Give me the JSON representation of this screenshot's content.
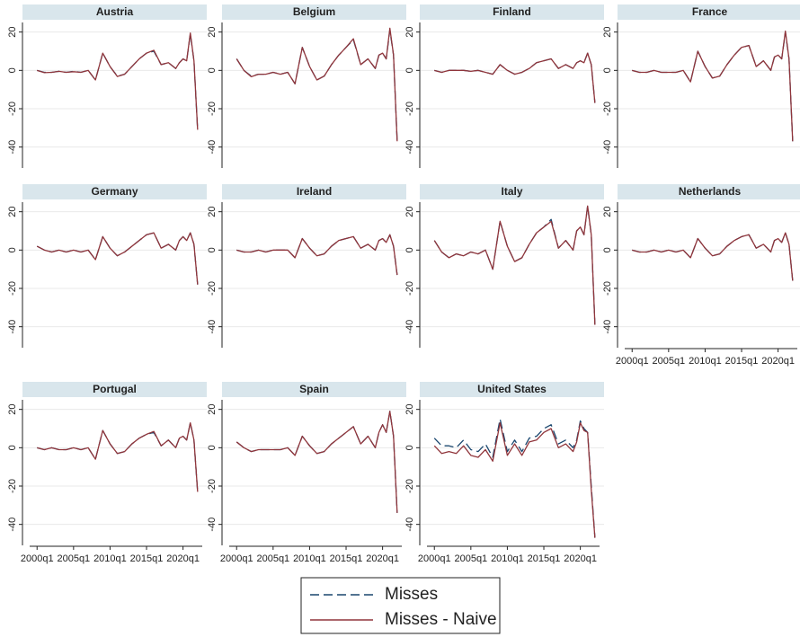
{
  "chart_data": {
    "type": "line",
    "x": [
      "2000q1",
      "2001q1",
      "2002q1",
      "2003q1",
      "2004q1",
      "2005q1",
      "2006q1",
      "2007q1",
      "2008q1",
      "2009q1",
      "2010q1",
      "2011q1",
      "2012q1",
      "2013q1",
      "2014q1",
      "2015q1",
      "2016q1",
      "2017q1",
      "2018q1",
      "2019q1",
      "2019q3",
      "2020q1",
      "2020q3",
      "2021q1",
      "2021q3",
      "2022q1"
    ],
    "xlim": [
      "1998q1",
      "2023q2"
    ],
    "xticks": [
      "2000q1",
      "2005q1",
      "2010q1",
      "2015q1",
      "2020q1"
    ],
    "ylim": [
      -50,
      25
    ],
    "yticks": [
      20,
      0,
      -20,
      -40
    ],
    "grid": true,
    "series": [
      {
        "name": "Misses",
        "color": "#1a476f",
        "dash": "10 5"
      },
      {
        "name": "Misses - Naive",
        "color": "#90353b"
      }
    ],
    "panels": [
      {
        "title": "Austria",
        "series": [
          {
            "values": [
              0,
              -1,
              -1,
              -0.5,
              -1,
              -0.5,
              -1,
              0,
              -5,
              9,
              2,
              -3,
              -2,
              2,
              6,
              9,
              10,
              3,
              4,
              1,
              4,
              6,
              5,
              19,
              5,
              -31
            ]
          },
          {
            "values": [
              0,
              -1.2,
              -1,
              -0.5,
              -1,
              -0.7,
              -1,
              0,
              -5,
              9,
              2,
              -3.2,
              -2,
              2,
              6,
              9,
              10.5,
              3,
              4,
              1,
              4,
              6,
              5,
              19.5,
              5,
              -31
            ]
          }
        ]
      },
      {
        "title": "Belgium",
        "series": [
          {
            "values": [
              6,
              0,
              -3,
              -2,
              -2,
              -1,
              -2,
              -1,
              -7,
              12,
              2,
              -5,
              -3,
              3,
              8,
              12,
              16,
              3,
              6,
              1,
              8,
              9,
              6,
              21,
              8,
              -37
            ]
          },
          {
            "values": [
              6,
              0,
              -3.3,
              -2,
              -2,
              -1,
              -2,
              -1,
              -7,
              12,
              2,
              -5,
              -3,
              3,
              8,
              12,
              16.5,
              3,
              6,
              1,
              8,
              9,
              6,
              22,
              8,
              -37
            ]
          }
        ]
      },
      {
        "title": "Finland",
        "series": [
          {
            "values": [
              0,
              -1,
              0,
              0,
              0,
              -0.5,
              0,
              -1,
              -2,
              3,
              0,
              -2,
              -1,
              1,
              4,
              5,
              6,
              1,
              3,
              1,
              4,
              5,
              4,
              9,
              3,
              -17
            ]
          },
          {
            "values": [
              0,
              -1,
              0,
              0,
              0,
              -0.5,
              0,
              -1,
              -2,
              3,
              0,
              -2,
              -1,
              1,
              4,
              5,
              6,
              1,
              3,
              1,
              4,
              5,
              4,
              9,
              3,
              -17
            ]
          }
        ]
      },
      {
        "title": "France",
        "series": [
          {
            "values": [
              0,
              -1,
              -1,
              0,
              -1,
              -1,
              -1,
              0,
              -6,
              10,
              2,
              -4,
              -3,
              3,
              8,
              12,
              13,
              2,
              5,
              0,
              7,
              8,
              6,
              20,
              6,
              -37
            ]
          },
          {
            "values": [
              0,
              -1,
              -1,
              0,
              -1,
              -1,
              -1,
              0,
              -6,
              10,
              2,
              -4,
              -3,
              3,
              8,
              12,
              13,
              2,
              5,
              0,
              7,
              8,
              6,
              20.5,
              6,
              -37
            ]
          }
        ]
      },
      {
        "title": "Germany",
        "series": [
          {
            "values": [
              2,
              0,
              -1,
              0,
              -1,
              0,
              -1,
              0,
              -5,
              7,
              1,
              -3,
              -1,
              2,
              5,
              8,
              9,
              1,
              3,
              0,
              5,
              7,
              5,
              9,
              3,
              -18
            ]
          },
          {
            "values": [
              2,
              0,
              -1,
              0,
              -1,
              0,
              -1,
              0,
              -5,
              7,
              1,
              -3,
              -1,
              2,
              5,
              8,
              9,
              1,
              3,
              0,
              5,
              7,
              5,
              9,
              3,
              -18
            ]
          }
        ]
      },
      {
        "title": "Ireland",
        "series": [
          {
            "values": [
              0,
              -1,
              -1,
              0,
              -1,
              0,
              0,
              0,
              -4,
              6,
              1,
              -3,
              -2,
              2,
              5,
              6,
              7,
              1,
              3,
              0,
              5,
              6,
              4,
              8,
              2,
              -13
            ]
          },
          {
            "values": [
              0,
              -1,
              -1,
              0,
              -1,
              0,
              0,
              0,
              -4,
              6,
              1,
              -3,
              -2,
              2,
              5,
              6,
              7,
              1,
              3,
              0,
              5,
              6,
              4,
              8,
              2,
              -13
            ]
          }
        ]
      },
      {
        "title": "Italy",
        "series": [
          {
            "values": [
              5,
              -1,
              -4,
              -2,
              -3,
              -1,
              -2,
              0,
              -10,
              15,
              2,
              -6,
              -4,
              3,
              9,
              12,
              16,
              1,
              5,
              0,
              10,
              12,
              8,
              23,
              8,
              -39
            ]
          },
          {
            "values": [
              5,
              -1,
              -4,
              -2,
              -3,
              -1,
              -2,
              0,
              -10,
              15,
              2,
              -6,
              -4,
              3,
              9,
              12,
              15,
              1,
              5,
              0,
              10,
              12,
              8,
              23,
              8,
              -39
            ]
          }
        ]
      },
      {
        "title": "Netherlands",
        "series": [
          {
            "values": [
              0,
              -1,
              -1,
              0,
              -1,
              0,
              -1,
              0,
              -4,
              6,
              1,
              -3,
              -2,
              2,
              5,
              7,
              8,
              1,
              3,
              -1,
              5,
              6,
              4,
              9,
              3,
              -16
            ]
          },
          {
            "values": [
              0,
              -1,
              -1,
              0,
              -1,
              0,
              -1,
              0,
              -4,
              6,
              1,
              -3,
              -2,
              2,
              5,
              7,
              8,
              1,
              3,
              -1,
              5,
              6,
              4,
              9,
              3,
              -16
            ]
          }
        ]
      },
      {
        "title": "Portugal",
        "series": [
          {
            "values": [
              0,
              -1,
              0,
              -1,
              -1,
              0,
              -1,
              0,
              -6,
              9,
              2,
              -3,
              -2,
              2,
              5,
              7,
              8,
              1,
              4,
              0,
              5,
              6,
              4,
              13,
              4,
              -23
            ]
          },
          {
            "values": [
              0,
              -1,
              0,
              -1,
              -1,
              0,
              -1,
              0,
              -6,
              9,
              2,
              -3,
              -2,
              2,
              5,
              7,
              8.5,
              1,
              4,
              0,
              5,
              6,
              4,
              13,
              4,
              -23
            ]
          }
        ]
      },
      {
        "title": "Spain",
        "series": [
          {
            "values": [
              3,
              0,
              -2,
              -1,
              -1,
              -1,
              -1,
              0,
              -4,
              6,
              1,
              -3,
              -2,
              2,
              5,
              8,
              11,
              2,
              6,
              0,
              8,
              12,
              8,
              19,
              6,
              -34
            ]
          },
          {
            "values": [
              3,
              0,
              -2,
              -1,
              -1,
              -1,
              -1,
              0,
              -4,
              6,
              1,
              -3,
              -2,
              2,
              5,
              8,
              11,
              2,
              6,
              0,
              8,
              12,
              8,
              19,
              6,
              -34
            ]
          }
        ]
      },
      {
        "title": "United States",
        "series": [
          {
            "values": [
              5,
              1,
              1,
              0,
              4,
              -1,
              -2,
              2,
              -5,
              15,
              -2,
              4,
              -2,
              5,
              6,
              10,
              12,
              2,
              4,
              0,
              4,
              14,
              10,
              8,
              -20,
              -47
            ]
          },
          {
            "values": [
              1,
              -3,
              -2,
              -3,
              1,
              -4,
              -5,
              -1,
              -7,
              13,
              -4,
              2,
              -4,
              3,
              4,
              8,
              10,
              0,
              2,
              -2,
              3,
              13,
              9,
              8,
              -22,
              -47
            ]
          }
        ]
      }
    ]
  }
}
